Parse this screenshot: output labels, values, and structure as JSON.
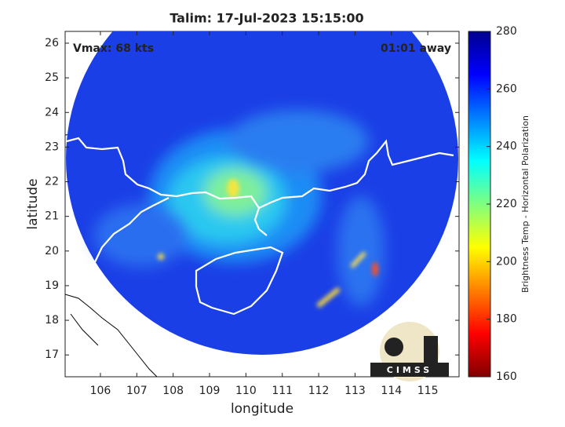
{
  "chart_data": {
    "type": "map",
    "title": "Talim: 17-Jul-2023 15:15:00",
    "annotations": [
      "Vmax: 68 kts",
      "01:01 away"
    ],
    "xlabel": "longitude",
    "ylabel": "latitude",
    "xlim": [
      105.03,
      115.86
    ],
    "xticks": [
      106,
      107,
      108,
      109,
      110,
      111,
      112,
      113,
      114,
      115
    ],
    "ylim": [
      16.37,
      26.34
    ],
    "yticks": [
      17,
      18,
      19,
      20,
      21,
      22,
      23,
      24,
      25,
      26
    ],
    "colorbar": {
      "label": "Brightness Temp - Horizontal Polarization",
      "colormap": "jet",
      "lim": [
        160,
        280
      ],
      "ticks": [
        160,
        180,
        200,
        220,
        240,
        260,
        280
      ]
    },
    "logo_text": "CIMSS"
  }
}
